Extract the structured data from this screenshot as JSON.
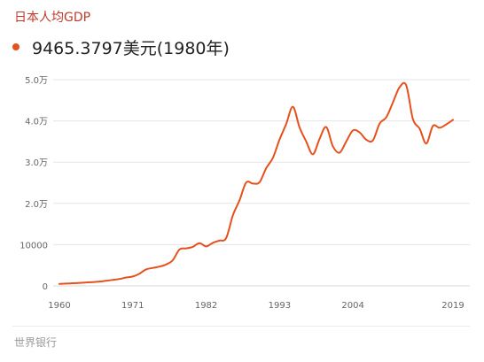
{
  "title": "日本人均GDP",
  "headline": {
    "value": "9465.3797美元",
    "note": "(1980年)"
  },
  "source": "世界银行",
  "colors": {
    "line": "#e6501c",
    "title": "#c0392b",
    "grid": "#e5e5e5",
    "axis_text": "#666666"
  },
  "chart_data": {
    "type": "line",
    "xlim": [
      1960,
      2019
    ],
    "ylim": [
      0,
      50000
    ],
    "x_ticks": [
      1960,
      1971,
      1982,
      1993,
      2004,
      2019
    ],
    "y_ticks": [
      {
        "value": 0,
        "label": "0"
      },
      {
        "value": 10000,
        "label": "10000"
      },
      {
        "value": 20000,
        "label": "2.0万"
      },
      {
        "value": 30000,
        "label": "3.0万"
      },
      {
        "value": 40000,
        "label": "4.0万"
      },
      {
        "value": 50000,
        "label": "5.0万"
      }
    ],
    "grid": true,
    "series": [
      {
        "x": [
          1960,
          1961,
          1962,
          1963,
          1964,
          1965,
          1966,
          1967,
          1968,
          1969,
          1970,
          1971,
          1972,
          1973,
          1974,
          1975,
          1976,
          1977,
          1978,
          1979,
          1980,
          1981,
          1982,
          1983,
          1984,
          1985,
          1986,
          1987,
          1988,
          1989,
          1990,
          1991,
          1992,
          1993,
          1994,
          1995,
          1996,
          1997,
          1998,
          1999,
          2000,
          2001,
          2002,
          2003,
          2004,
          2005,
          2006,
          2007,
          2008,
          2009,
          2010,
          2011,
          2012,
          2013,
          2014,
          2015,
          2016,
          2017,
          2018,
          2019
        ],
        "values": [
          480,
          560,
          640,
          730,
          840,
          920,
          1060,
          1230,
          1450,
          1670,
          2040,
          2270,
          2970,
          3990,
          4350,
          4670,
          5200,
          6230,
          8820,
          9100,
          9465,
          10360,
          9580,
          10430,
          10980,
          11580,
          17110,
          20750,
          25050,
          24810,
          25120,
          28540,
          31010,
          35450,
          39270,
          43440,
          38440,
          35020,
          31900,
          35650,
          38530,
          33850,
          32290,
          35010,
          37690,
          37220,
          35430,
          35280,
          39340,
          40860,
          44510,
          48170,
          48600,
          40450,
          38110,
          34520,
          38790,
          38330,
          39160,
          40250
        ]
      }
    ]
  }
}
